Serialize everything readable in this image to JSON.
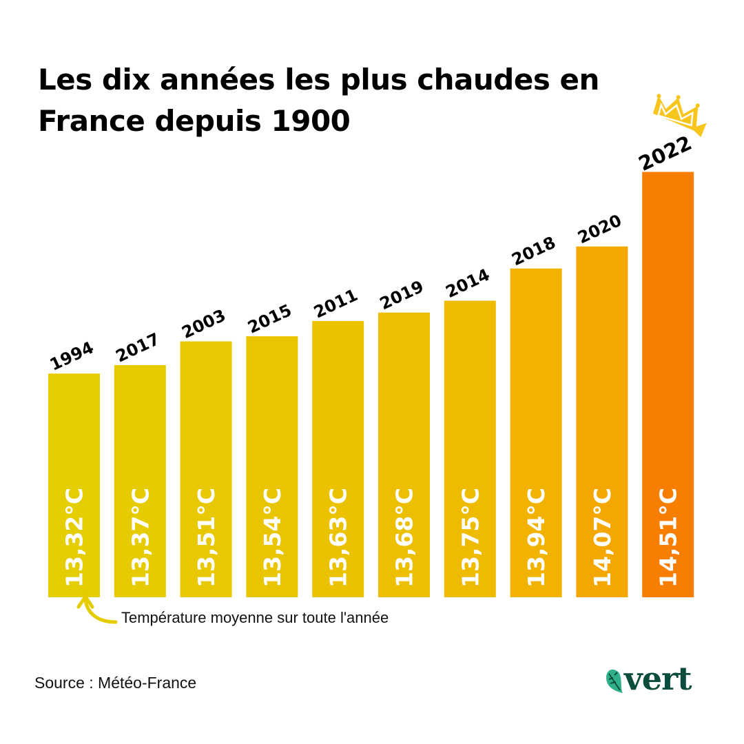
{
  "title": "Les dix années les plus chaudes en France depuis 1900",
  "annotation": "Température moyenne sur toute l'année",
  "source": "Source : Météo-France",
  "logo": "vert",
  "crown_icon": "crown-icon",
  "chart_data": {
    "type": "bar",
    "title": "Les dix années les plus chaudes en France depuis 1900",
    "xlabel": "",
    "ylabel": "",
    "ylim": [
      12,
      14.7
    ],
    "grid": false,
    "categories": [
      "1994",
      "2017",
      "2003",
      "2015",
      "2011",
      "2019",
      "2014",
      "2018",
      "2020",
      "2022"
    ],
    "values": [
      13.32,
      13.37,
      13.51,
      13.54,
      13.63,
      13.68,
      13.75,
      13.94,
      14.07,
      14.51
    ],
    "value_labels": [
      "13,32°C",
      "13,37°C",
      "13,51°C",
      "13,54°C",
      "13,63°C",
      "13,68°C",
      "13,75°C",
      "13,94°C",
      "14,07°C",
      "14,51°C"
    ],
    "colors": [
      "#e4cd00",
      "#e6cb00",
      "#e8c800",
      "#e9c500",
      "#ebc200",
      "#ecbf00",
      "#eebb00",
      "#f1b200",
      "#f3a700",
      "#f77e00"
    ]
  }
}
